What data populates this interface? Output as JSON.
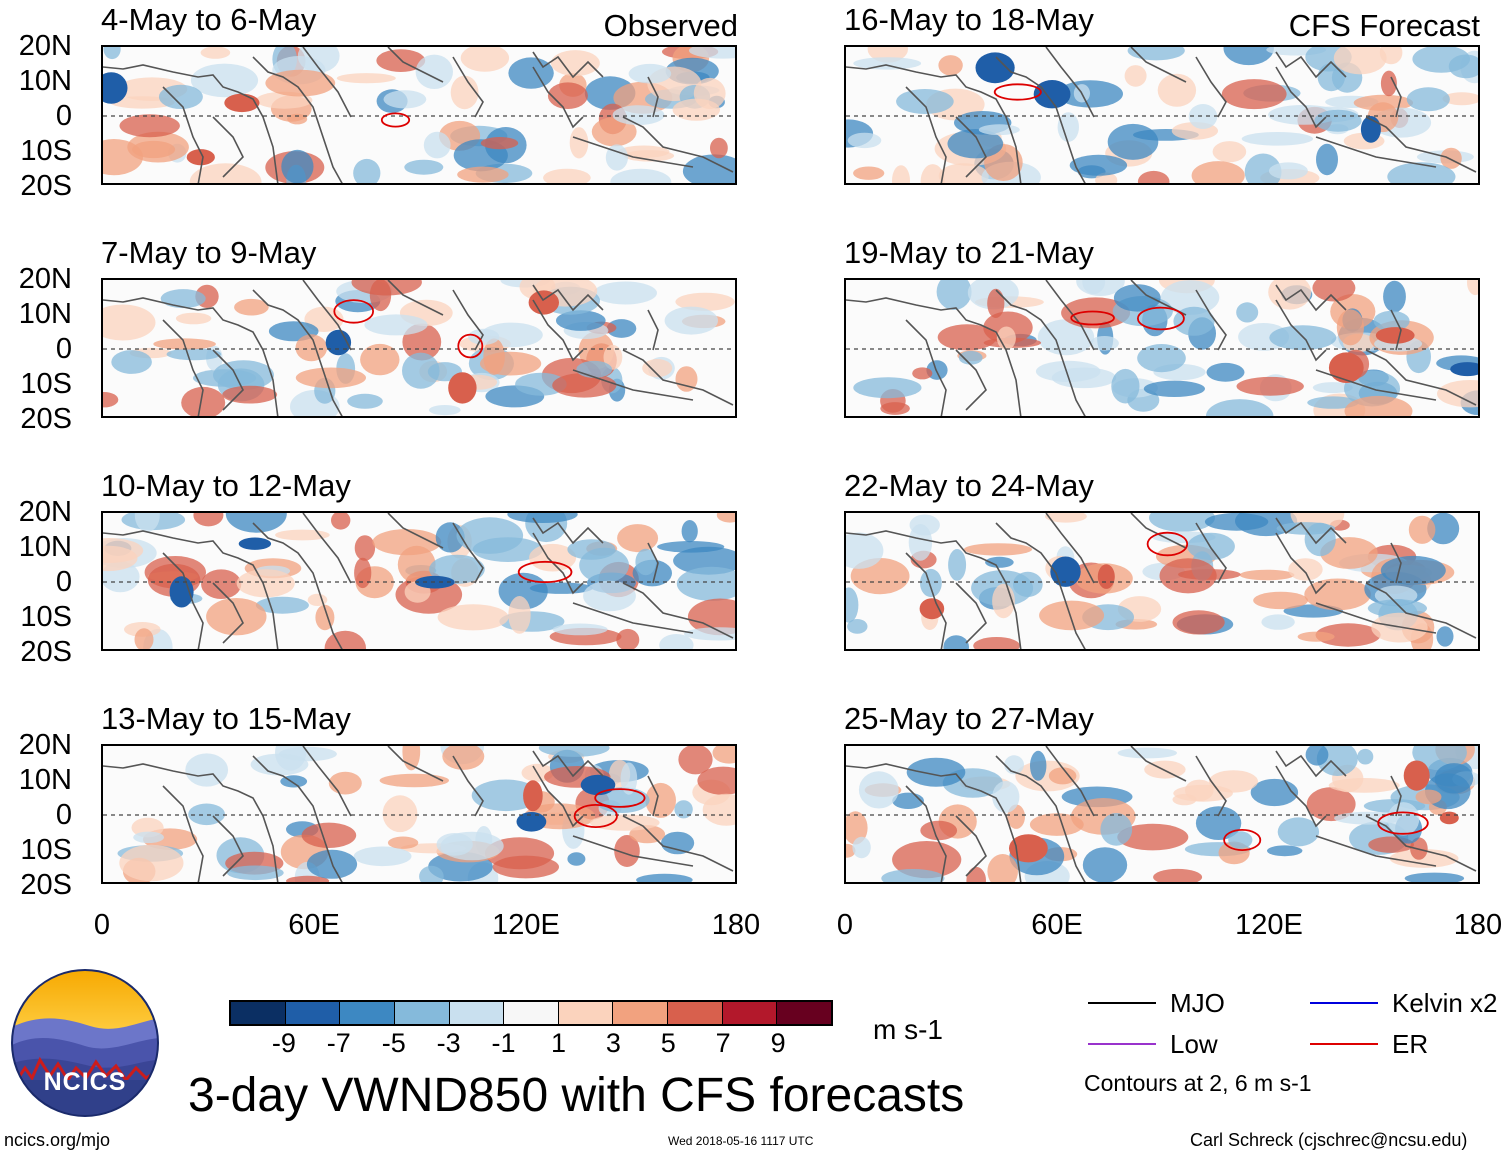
{
  "panels": {
    "observed": [
      {
        "title": "4-May to 6-May",
        "tag": "Observed"
      },
      {
        "title": "7-May to 9-May",
        "tag": ""
      },
      {
        "title": "10-May to 12-May",
        "tag": ""
      },
      {
        "title": "13-May to 15-May",
        "tag": ""
      }
    ],
    "forecast": [
      {
        "title": "16-May to 18-May",
        "tag": "CFS Forecast"
      },
      {
        "title": "19-May to 21-May",
        "tag": ""
      },
      {
        "title": "22-May to 24-May",
        "tag": ""
      },
      {
        "title": "25-May to 27-May",
        "tag": ""
      }
    ]
  },
  "y_axis": [
    "20N",
    "10N",
    "0",
    "10S",
    "20S"
  ],
  "x_axis": [
    "0",
    "60E",
    "120E",
    "180"
  ],
  "colorbar": {
    "labels": [
      "-9",
      "-7",
      "-5",
      "-3",
      "-1",
      "1",
      "3",
      "5",
      "7",
      "9"
    ],
    "colors": [
      "#0b2f63",
      "#1f5ea8",
      "#3d88c2",
      "#85badb",
      "#c9e0ef",
      "#f7f7f7",
      "#fbd3bd",
      "#f2a27f",
      "#d8604d",
      "#b3182b",
      "#67001f"
    ],
    "units": "m s-1"
  },
  "legend": {
    "items": [
      {
        "label": "MJO",
        "color": "#000000"
      },
      {
        "label": "Kelvin x2",
        "color": "#0000dd"
      },
      {
        "label": "Low",
        "color": "#9933cc"
      },
      {
        "label": "ER",
        "color": "#dd0000"
      }
    ],
    "note": "Contours at 2, 6 m s-1"
  },
  "title": "3-day VWND850 with CFS forecasts",
  "footer": {
    "url": "ncics.org/mjo",
    "timestamp": "Wed 2018-05-16 1117 UTC",
    "author": "Carl Schreck (cjschrec@ncsu.edu)",
    "logo_text": "NCICS"
  }
}
